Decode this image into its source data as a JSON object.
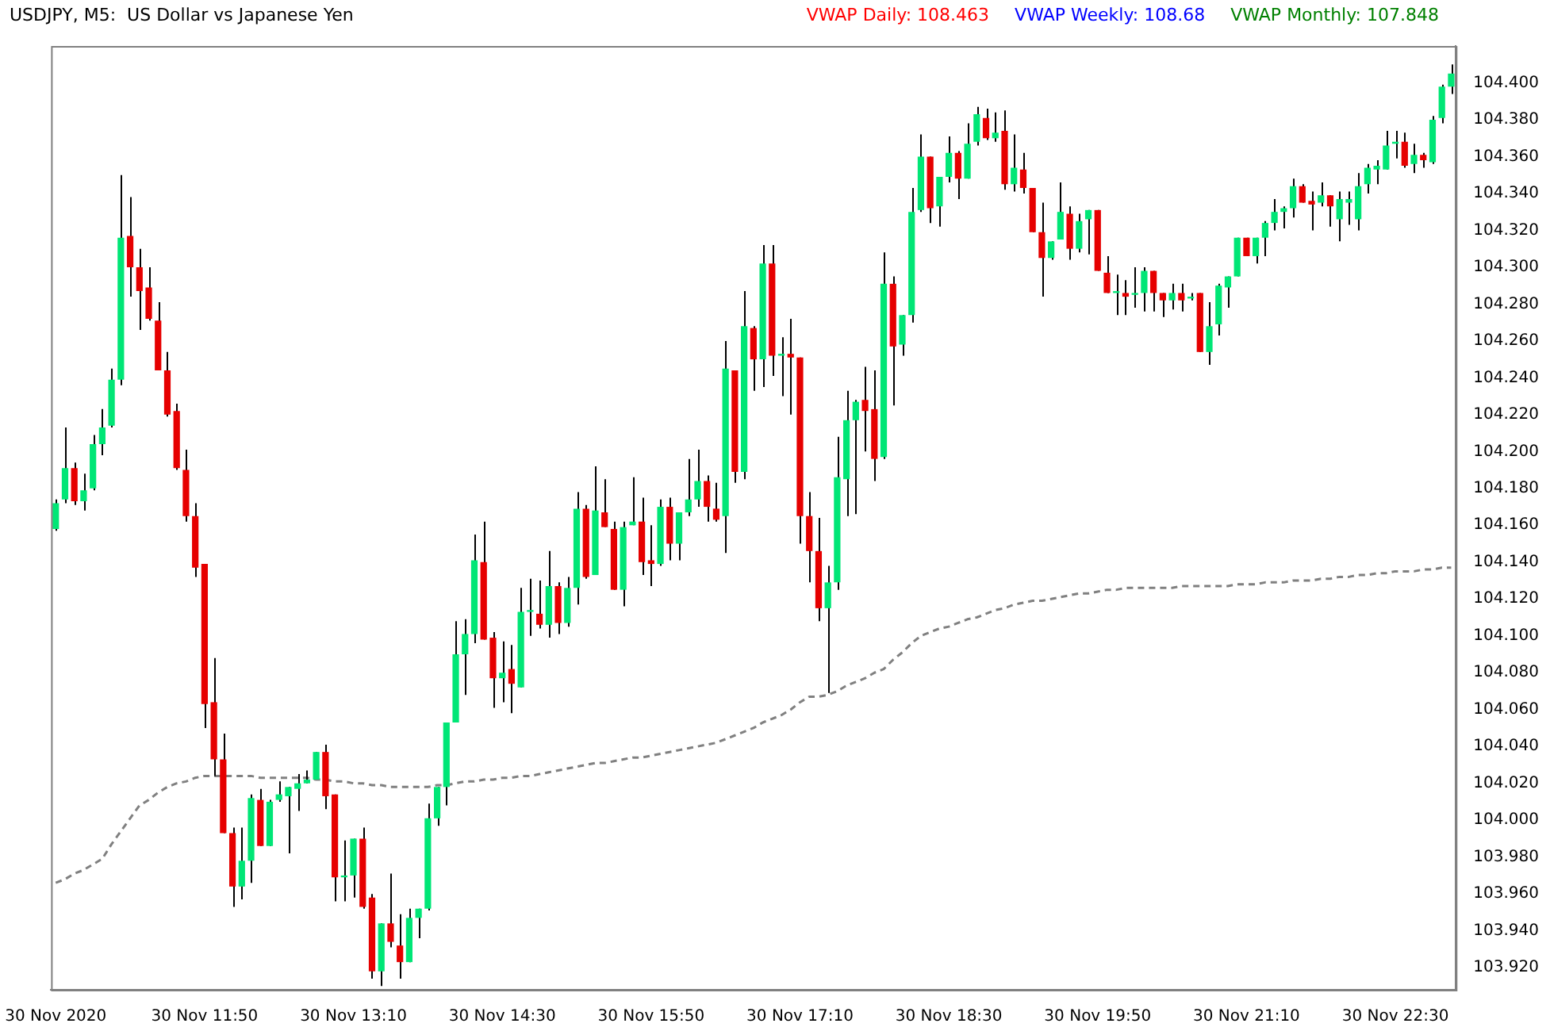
{
  "chart_data": {
    "type": "candlestick",
    "title": "USDJPY, M5:  US Dollar vs Japanese Yen",
    "annotations": [
      "VWAP Daily: 108.463",
      "VWAP Weekly: 108.68",
      "VWAP Monthly: 107.848"
    ],
    "categories": [
      "30 Nov 2020",
      null,
      null,
      null,
      null,
      null,
      null,
      null,
      null,
      null,
      null,
      null,
      null,
      null,
      null,
      null,
      "30 Nov 11:50",
      null,
      null,
      null,
      null,
      null,
      null,
      null,
      null,
      null,
      null,
      null,
      null,
      null,
      null,
      null,
      "30 Nov 13:10",
      null,
      null,
      null,
      null,
      null,
      null,
      null,
      null,
      null,
      null,
      null,
      null,
      null,
      null,
      null,
      "30 Nov 14:30",
      null,
      null,
      null,
      null,
      null,
      null,
      null,
      null,
      null,
      null,
      null,
      null,
      null,
      null,
      null,
      "30 Nov 15:50",
      null,
      null,
      null,
      null,
      null,
      null,
      null,
      null,
      null,
      null,
      null,
      null,
      null,
      null,
      null,
      "30 Nov 17:10",
      null,
      null,
      null,
      null,
      null,
      null,
      null,
      null,
      null,
      null,
      null,
      null,
      null,
      null,
      null,
      "30 Nov 18:30",
      null,
      null,
      null,
      null,
      null,
      null,
      null,
      null,
      null,
      null,
      null,
      null,
      null,
      null,
      null,
      "30 Nov 19:50",
      null,
      null,
      null,
      null,
      null,
      null,
      null,
      null,
      null,
      null,
      null,
      null,
      null,
      null,
      null,
      "30 Nov 21:10",
      null,
      null,
      null,
      null,
      null,
      null,
      null,
      null,
      null,
      null,
      null,
      null,
      null,
      null,
      null,
      "30 Nov 22:30",
      null,
      null,
      null,
      null,
      null,
      null
    ],
    "ohlc": [
      [
        104.158,
        104.174,
        104.157,
        104.172
      ],
      [
        104.174,
        104.213,
        104.172,
        104.191
      ],
      [
        104.191,
        104.194,
        104.171,
        104.173
      ],
      [
        104.173,
        104.188,
        104.168,
        104.179
      ],
      [
        104.18,
        104.209,
        104.179,
        104.204
      ],
      [
        104.204,
        104.223,
        104.198,
        104.213
      ],
      [
        104.214,
        104.245,
        104.213,
        104.239
      ],
      [
        104.239,
        104.35,
        104.236,
        104.316
      ],
      [
        104.317,
        104.338,
        104.284,
        104.3
      ],
      [
        104.3,
        104.31,
        104.266,
        104.287
      ],
      [
        104.289,
        104.3,
        104.271,
        104.272
      ],
      [
        104.271,
        104.281,
        104.244,
        104.244
      ],
      [
        104.244,
        104.254,
        104.219,
        104.22
      ],
      [
        104.222,
        104.226,
        104.19,
        104.191
      ],
      [
        104.19,
        104.201,
        104.162,
        104.165
      ],
      [
        104.165,
        104.172,
        104.132,
        104.137
      ],
      [
        104.139,
        104.139,
        104.05,
        104.063
      ],
      [
        104.064,
        104.088,
        104.024,
        104.033
      ],
      [
        104.033,
        104.047,
        103.993,
        103.993
      ],
      [
        103.993,
        103.996,
        103.953,
        103.964
      ],
      [
        103.964,
        103.996,
        103.957,
        103.978
      ],
      [
        103.978,
        104.014,
        103.966,
        104.012
      ],
      [
        104.011,
        104.017,
        103.986,
        103.986
      ],
      [
        103.986,
        104.011,
        103.986,
        104.01
      ],
      [
        104.011,
        104.021,
        104.01,
        104.014
      ],
      [
        104.013,
        104.018,
        103.982,
        104.018
      ],
      [
        104.017,
        104.025,
        104.005,
        104.02
      ],
      [
        104.02,
        104.027,
        104.02,
        104.022
      ],
      [
        104.022,
        104.037,
        104.022,
        104.037
      ],
      [
        104.037,
        104.041,
        104.006,
        104.013
      ],
      [
        104.014,
        104.014,
        103.956,
        103.969
      ],
      [
        103.969,
        103.989,
        103.956,
        103.97
      ],
      [
        103.97,
        103.99,
        103.958,
        103.99
      ],
      [
        103.99,
        103.996,
        103.952,
        103.953
      ],
      [
        103.958,
        103.96,
        103.914,
        103.918
      ],
      [
        103.918,
        103.944,
        103.91,
        103.944
      ],
      [
        103.944,
        103.971,
        103.931,
        103.934
      ],
      [
        103.932,
        103.949,
        103.914,
        103.923
      ],
      [
        103.923,
        103.952,
        103.923,
        103.947
      ],
      [
        103.947,
        103.952,
        103.936,
        103.952
      ],
      [
        103.952,
        104.009,
        103.951,
        104.001
      ],
      [
        104.001,
        104.018,
        103.997,
        104.018
      ],
      [
        104.018,
        104.053,
        104.008,
        104.053
      ],
      [
        104.053,
        104.108,
        104.053,
        104.09
      ],
      [
        104.09,
        104.109,
        104.068,
        104.101
      ],
      [
        104.101,
        104.155,
        104.096,
        104.141
      ],
      [
        104.14,
        104.162,
        104.098,
        104.098
      ],
      [
        104.099,
        104.102,
        104.061,
        104.077
      ],
      [
        104.077,
        104.097,
        104.064,
        104.08
      ],
      [
        104.082,
        104.095,
        104.058,
        104.074
      ],
      [
        104.072,
        104.126,
        104.072,
        104.113
      ],
      [
        104.113,
        104.131,
        104.1,
        104.114
      ],
      [
        104.112,
        104.13,
        104.104,
        104.106
      ],
      [
        104.106,
        104.146,
        104.099,
        104.127
      ],
      [
        104.127,
        104.129,
        104.101,
        104.107
      ],
      [
        104.107,
        104.132,
        104.105,
        104.126
      ],
      [
        104.126,
        104.178,
        104.117,
        104.169
      ],
      [
        104.169,
        104.171,
        104.131,
        104.132
      ],
      [
        104.133,
        104.192,
        104.133,
        104.168
      ],
      [
        104.167,
        104.185,
        104.159,
        104.159
      ],
      [
        104.158,
        104.162,
        104.125,
        104.125
      ],
      [
        104.125,
        104.162,
        104.116,
        104.159
      ],
      [
        104.16,
        104.186,
        104.16,
        104.162
      ],
      [
        104.162,
        104.175,
        104.133,
        104.14
      ],
      [
        104.141,
        104.16,
        104.127,
        104.139
      ],
      [
        104.139,
        104.174,
        104.138,
        104.17
      ],
      [
        104.17,
        104.175,
        104.141,
        104.15
      ],
      [
        104.15,
        104.167,
        104.141,
        104.167
      ],
      [
        104.167,
        104.196,
        104.165,
        104.174
      ],
      [
        104.174,
        104.201,
        104.17,
        104.184
      ],
      [
        104.184,
        104.187,
        104.162,
        104.17
      ],
      [
        104.169,
        104.183,
        104.162,
        104.163
      ],
      [
        104.165,
        104.26,
        104.145,
        104.245
      ],
      [
        104.244,
        104.244,
        104.183,
        104.189
      ],
      [
        104.189,
        104.287,
        104.185,
        104.268
      ],
      [
        104.267,
        104.268,
        104.233,
        104.25
      ],
      [
        104.25,
        104.312,
        104.235,
        104.302
      ],
      [
        104.302,
        104.312,
        104.241,
        104.252
      ],
      [
        104.252,
        104.262,
        104.23,
        104.253
      ],
      [
        104.253,
        104.272,
        104.22,
        104.251
      ],
      [
        104.251,
        104.251,
        104.15,
        104.165
      ],
      [
        104.165,
        104.178,
        104.129,
        104.146
      ],
      [
        104.146,
        104.164,
        104.108,
        104.115
      ],
      [
        104.115,
        104.138,
        104.069,
        104.129
      ],
      [
        104.129,
        104.208,
        104.125,
        104.186
      ],
      [
        104.185,
        104.233,
        104.165,
        104.217
      ],
      [
        104.217,
        104.228,
        104.166,
        104.227
      ],
      [
        104.228,
        104.246,
        104.2,
        104.222
      ],
      [
        104.223,
        104.244,
        104.184,
        104.196
      ],
      [
        104.197,
        104.308,
        104.196,
        104.291
      ],
      [
        104.291,
        104.295,
        104.225,
        104.257
      ],
      [
        104.258,
        104.274,
        104.252,
        104.274
      ],
      [
        104.274,
        104.343,
        104.27,
        104.33
      ],
      [
        104.331,
        104.372,
        104.33,
        104.36
      ],
      [
        104.36,
        104.36,
        104.324,
        104.332
      ],
      [
        104.333,
        104.349,
        104.322,
        104.349
      ],
      [
        104.349,
        104.371,
        104.346,
        104.362
      ],
      [
        104.362,
        104.363,
        104.337,
        104.348
      ],
      [
        104.348,
        104.378,
        104.348,
        104.367
      ],
      [
        104.368,
        104.387,
        104.366,
        104.383
      ],
      [
        104.381,
        104.386,
        104.369,
        104.37
      ],
      [
        104.37,
        104.384,
        104.368,
        104.373
      ],
      [
        104.374,
        104.385,
        104.342,
        104.345
      ],
      [
        104.345,
        104.372,
        104.341,
        104.354
      ],
      [
        104.353,
        104.362,
        104.34,
        104.343
      ],
      [
        104.343,
        104.343,
        104.319,
        104.319
      ],
      [
        104.319,
        104.335,
        104.284,
        104.305
      ],
      [
        104.305,
        104.314,
        104.304,
        104.314
      ],
      [
        104.315,
        104.346,
        104.315,
        104.33
      ],
      [
        104.329,
        104.333,
        104.304,
        104.31
      ],
      [
        104.31,
        104.329,
        104.308,
        104.325
      ],
      [
        104.326,
        104.331,
        104.307,
        104.331
      ],
      [
        104.331,
        104.331,
        104.298,
        104.298
      ],
      [
        104.297,
        104.306,
        104.286,
        104.286
      ],
      [
        104.286,
        104.296,
        104.274,
        104.287
      ],
      [
        104.286,
        104.293,
        104.274,
        104.284
      ],
      [
        104.285,
        104.3,
        104.278,
        104.286
      ],
      [
        104.286,
        104.3,
        104.276,
        104.298
      ],
      [
        104.298,
        104.298,
        104.276,
        104.286
      ],
      [
        104.286,
        104.286,
        104.273,
        104.282
      ],
      [
        104.282,
        104.291,
        104.277,
        104.286
      ],
      [
        104.286,
        104.291,
        104.276,
        104.282
      ],
      [
        104.283,
        104.286,
        104.282,
        104.284
      ],
      [
        104.286,
        104.286,
        104.254,
        104.254
      ],
      [
        104.254,
        104.281,
        104.247,
        104.268
      ],
      [
        104.269,
        104.291,
        104.263,
        104.29
      ],
      [
        104.289,
        104.295,
        104.278,
        104.295
      ],
      [
        104.295,
        104.316,
        104.295,
        104.316
      ],
      [
        104.316,
        104.316,
        104.306,
        104.306
      ],
      [
        104.306,
        104.316,
        104.302,
        104.316
      ],
      [
        104.316,
        104.325,
        104.306,
        104.324
      ],
      [
        104.324,
        104.337,
        104.32,
        104.33
      ],
      [
        104.33,
        104.333,
        104.321,
        104.332
      ],
      [
        104.332,
        104.348,
        104.327,
        104.344
      ],
      [
        104.344,
        104.345,
        104.335,
        104.335
      ],
      [
        104.336,
        104.341,
        104.32,
        104.334
      ],
      [
        104.335,
        104.346,
        104.333,
        104.339
      ],
      [
        104.339,
        104.339,
        104.322,
        104.333
      ],
      [
        104.326,
        104.341,
        104.314,
        104.337
      ],
      [
        104.335,
        104.341,
        104.323,
        104.337
      ],
      [
        104.326,
        104.351,
        104.32,
        104.344
      ],
      [
        104.345,
        104.356,
        104.34,
        104.354
      ],
      [
        104.353,
        104.358,
        104.345,
        104.355
      ],
      [
        104.353,
        104.374,
        104.353,
        104.366
      ],
      [
        104.367,
        104.374,
        104.359,
        104.368
      ],
      [
        104.368,
        104.373,
        104.354,
        104.355
      ],
      [
        104.356,
        104.367,
        104.351,
        104.361
      ],
      [
        104.361,
        104.362,
        104.354,
        104.358
      ],
      [
        104.357,
        104.382,
        104.356,
        104.38
      ],
      [
        104.381,
        104.399,
        104.378,
        104.398
      ],
      [
        104.398,
        104.41,
        104.394,
        104.405
      ]
    ],
    "colors": [
      "#00e676",
      "#00e676",
      "#e60000",
      "#00e676",
      "#00e676",
      "#00e676",
      "#00e676",
      "#00e676",
      "#e60000",
      "#e60000",
      "#e60000",
      "#e60000",
      "#e60000",
      "#e60000",
      "#e60000",
      "#e60000",
      "#e60000",
      "#e60000",
      "#e60000",
      "#e60000",
      "#00e676",
      "#00e676",
      "#e60000",
      "#00e676",
      "#00e676",
      "#00e676",
      "#00e676",
      "#00e676",
      "#00e676",
      "#e60000",
      "#e60000",
      "#00e676",
      "#00e676",
      "#e60000",
      "#e60000",
      "#00e676",
      "#e60000",
      "#e60000",
      "#00e676",
      "#00e676",
      "#00e676",
      "#00e676",
      "#00e676",
      "#00e676",
      "#00e676",
      "#00e676",
      "#e60000",
      "#e60000",
      "#00e676",
      "#e60000",
      "#00e676",
      "#00e676",
      "#e60000",
      "#00e676",
      "#e60000",
      "#00e676",
      "#00e676",
      "#e60000",
      "#00e676",
      "#e60000",
      "#e60000",
      "#00e676",
      "#00e676",
      "#e60000",
      "#e60000",
      "#00e676",
      "#e60000",
      "#00e676",
      "#00e676",
      "#00e676",
      "#e60000",
      "#e60000",
      "#00e676",
      "#e60000",
      "#00e676",
      "#e60000",
      "#00e676",
      "#e60000",
      "#00e676",
      "#e60000",
      "#e60000",
      "#e60000",
      "#e60000",
      "#00e676",
      "#00e676",
      "#00e676",
      "#00e676",
      "#e60000",
      "#e60000",
      "#00e676",
      "#e60000",
      "#00e676",
      "#00e676",
      "#00e676",
      "#e60000",
      "#00e676",
      "#00e676",
      "#e60000",
      "#00e676",
      "#00e676",
      "#e60000",
      "#00e676",
      "#e60000",
      "#00e676",
      "#e60000",
      "#e60000",
      "#e60000",
      "#00e676",
      "#00e676",
      "#e60000",
      "#00e676",
      "#00e676",
      "#e60000",
      "#e60000",
      "#00e676",
      "#e60000",
      "#00e676",
      "#00e676",
      "#e60000",
      "#e60000",
      "#00e676",
      "#e60000",
      "#00e676",
      "#e60000",
      "#00e676",
      "#00e676",
      "#00e676",
      "#00e676",
      "#e60000",
      "#00e676",
      "#00e676",
      "#00e676",
      "#00e676",
      "#00e676",
      "#e60000",
      "#e60000",
      "#00e676",
      "#e60000",
      "#00e676",
      "#00e676",
      "#00e676",
      "#00e676",
      "#00e676",
      "#00e676",
      "#00e676",
      "#e60000",
      "#00e676",
      "#e60000",
      "#00e676",
      "#00e676",
      "#00e676"
    ],
    "series": [
      {
        "type": "line",
        "color": "#808080",
        "line_style": "dashed",
        "marker": "none",
        "values": [
          103.966,
          103.968,
          103.971,
          103.973,
          103.976,
          103.979,
          103.987,
          103.994,
          104.001,
          104.008,
          104.011,
          104.015,
          104.018,
          104.02,
          104.021,
          104.023,
          104.024,
          104.024,
          104.024,
          104.024,
          104.024,
          104.024,
          104.023,
          104.023,
          104.023,
          104.023,
          104.023,
          104.023,
          104.022,
          104.022,
          104.021,
          104.021,
          104.02,
          104.02,
          104.019,
          104.019,
          104.018,
          104.018,
          104.018,
          104.018,
          104.018,
          104.019,
          104.019,
          104.02,
          104.021,
          104.021,
          104.022,
          104.022,
          104.023,
          104.023,
          104.024,
          104.024,
          104.025,
          104.026,
          104.027,
          104.028,
          104.029,
          104.03,
          104.031,
          104.031,
          104.032,
          104.033,
          104.034,
          104.034,
          104.035,
          104.036,
          104.037,
          104.038,
          104.039,
          104.04,
          104.041,
          104.042,
          104.044,
          104.046,
          104.048,
          104.05,
          104.053,
          104.055,
          104.057,
          104.06,
          104.064,
          104.067,
          104.067,
          104.068,
          104.07,
          104.073,
          104.075,
          104.077,
          104.08,
          104.082,
          104.087,
          104.091,
          104.096,
          104.1,
          104.102,
          104.104,
          104.105,
          104.107,
          104.109,
          104.11,
          104.112,
          104.114,
          104.115,
          104.117,
          104.118,
          104.119,
          104.119,
          104.12,
          104.121,
          104.122,
          104.123,
          104.123,
          104.124,
          104.125,
          104.125,
          104.126,
          104.126,
          104.126,
          104.126,
          104.126,
          104.126,
          104.127,
          104.127,
          104.127,
          104.127,
          104.127,
          104.127,
          104.128,
          104.128,
          104.128,
          104.129,
          104.129,
          104.129,
          104.13,
          104.13,
          104.13,
          104.131,
          104.131,
          104.132,
          104.132,
          104.133,
          104.133,
          104.134,
          104.134,
          104.135,
          104.135,
          104.135,
          104.136,
          104.136,
          104.137,
          104.137
        ]
      }
    ],
    "ylim": [
      103.908,
      104.42
    ],
    "yticks": [
      {
        "value": 103.92,
        "label": "103.920"
      },
      {
        "value": 103.94,
        "label": "103.940"
      },
      {
        "value": 103.96,
        "label": "103.960"
      },
      {
        "value": 103.98,
        "label": "103.980"
      },
      {
        "value": 104.0,
        "label": "104.000"
      },
      {
        "value": 104.02,
        "label": "104.020"
      },
      {
        "value": 104.04,
        "label": "104.040"
      },
      {
        "value": 104.06,
        "label": "104.060"
      },
      {
        "value": 104.08,
        "label": "104.080"
      },
      {
        "value": 104.1,
        "label": "104.100"
      },
      {
        "value": 104.12,
        "label": "104.120"
      },
      {
        "value": 104.14,
        "label": "104.140"
      },
      {
        "value": 104.16,
        "label": "104.160"
      },
      {
        "value": 104.18,
        "label": "104.180"
      },
      {
        "value": 104.2,
        "label": "104.200"
      },
      {
        "value": 104.22,
        "label": "104.220"
      },
      {
        "value": 104.24,
        "label": "104.240"
      },
      {
        "value": 104.26,
        "label": "104.260"
      },
      {
        "value": 104.28,
        "label": "104.280"
      },
      {
        "value": 104.3,
        "label": "104.300"
      },
      {
        "value": 104.32,
        "label": "104.320"
      },
      {
        "value": 104.34,
        "label": "104.340"
      },
      {
        "value": 104.36,
        "label": "104.360"
      },
      {
        "value": 104.38,
        "label": "104.380"
      },
      {
        "value": 104.4,
        "label": "104.400"
      }
    ]
  }
}
